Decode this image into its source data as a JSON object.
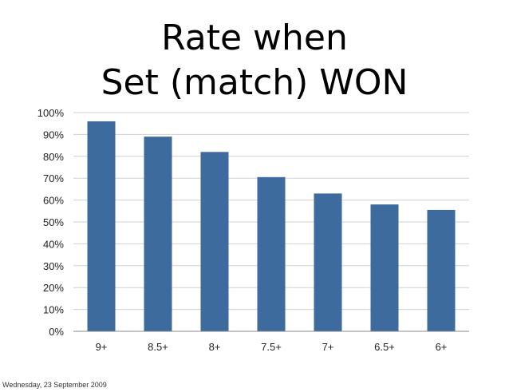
{
  "slide": {
    "title_lines": [
      "Rate when",
      "Set (match) WON"
    ],
    "footer_date": "Wednesday, 23 September 2009"
  },
  "colors": {
    "bar": "#3d6b9e",
    "grid": "#d0d0d0",
    "axis": "#888888"
  },
  "chart_data": {
    "type": "bar",
    "title": "Rate when Set (match) WON",
    "categories": [
      "9+",
      "8.5+",
      "8+",
      "7.5+",
      "7+",
      "6.5+",
      "6+"
    ],
    "values": [
      96,
      89,
      82,
      70.5,
      63,
      58,
      55.5
    ],
    "xlabel": "",
    "ylabel": "",
    "ylim": [
      0,
      100
    ],
    "y_ticks": [
      0,
      10,
      20,
      30,
      40,
      50,
      60,
      70,
      80,
      90,
      100
    ],
    "y_tick_suffix": "%",
    "grid": true,
    "legend": "none"
  }
}
